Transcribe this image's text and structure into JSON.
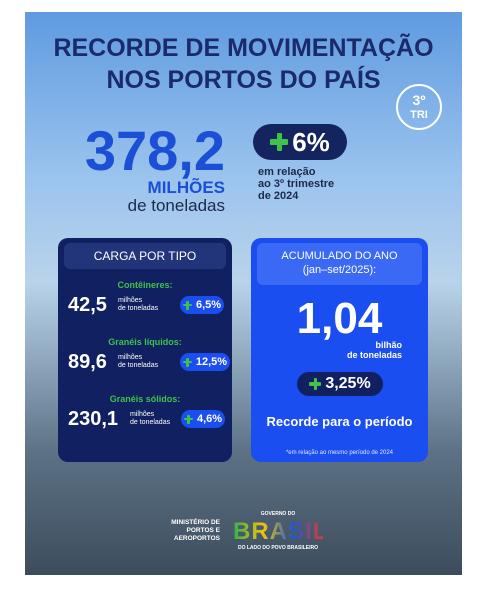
{
  "header": {
    "title_lines": [
      "RECORDE DE MOVIMENTAÇÃO",
      "NOS PORTOS DO PAÍS"
    ],
    "badge": [
      "3º",
      "TRI"
    ]
  },
  "highlight": {
    "value": "378,2",
    "unit": "MILHÕES",
    "unit_sub": "de toneladas",
    "change": "6%",
    "note_lines": [
      "em relação",
      "ao 3º trimestre",
      "de 2024"
    ]
  },
  "panel_left": {
    "title": "CARGA POR TIPO",
    "rows": [
      {
        "label": "Contêineres:",
        "value": "42,5",
        "unit_lines": [
          "milhões",
          "de toneladas"
        ],
        "change": "6,5%"
      },
      {
        "label": "Granéis líquidos:",
        "value": "89,6",
        "unit_lines": [
          "milhões",
          "de toneladas"
        ],
        "change": "12,5%"
      },
      {
        "label": "Granéis sólidos:",
        "value": "230,1",
        "unit_lines": [
          "milhões",
          "de toneladas"
        ],
        "change": "4,6%"
      }
    ]
  },
  "panel_right": {
    "title_lines": [
      "ACUMULADO DO ANO",
      "(jan–set/2025):"
    ],
    "value": "1,04",
    "unit_lines": [
      "bilhão",
      "de toneladas"
    ],
    "change": "3,25%",
    "caption": "Recorde para o período",
    "footnote": "*em relação ao mesmo período de 2024"
  },
  "footer": {
    "ministry_lines": [
      "MINISTÉRIO DE",
      "PORTOS E",
      "AEROPORTOS"
    ],
    "gov_top": "GOVERNO DO",
    "gov_name": "BRASIL",
    "gov_slogan": "DO LADO DO POVO BRASILEIRO"
  }
}
